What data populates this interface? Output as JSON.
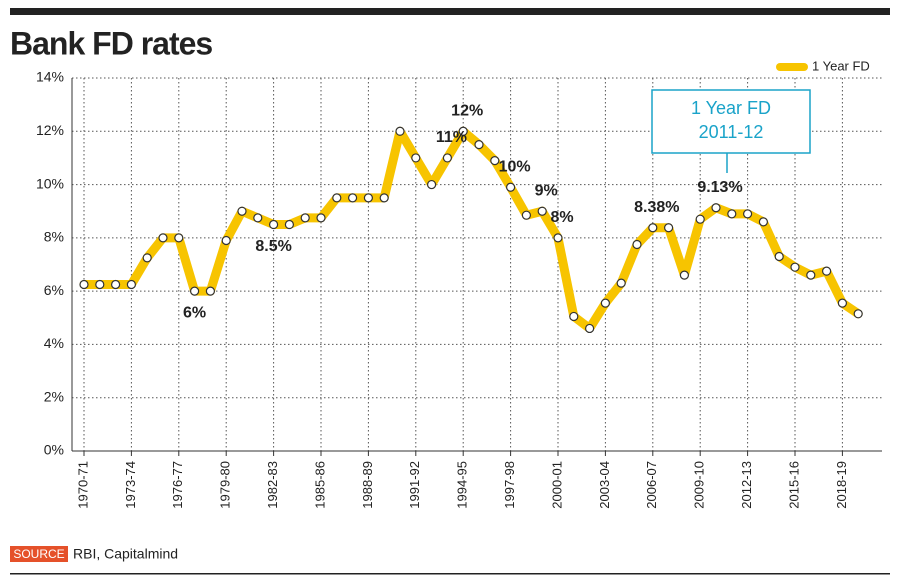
{
  "chart_data": {
    "type": "line",
    "title": "Bank FD rates",
    "categories": [
      "1970-71",
      null,
      null,
      "1973-74",
      null,
      null,
      "1976-77",
      null,
      null,
      "1979-80",
      null,
      null,
      "1982-83",
      null,
      null,
      "1985-86",
      null,
      null,
      "1988-89",
      null,
      null,
      "1991-92",
      null,
      null,
      "1994-95",
      null,
      null,
      "1997-98",
      null,
      null,
      "2000-01",
      null,
      null,
      "2003-04",
      null,
      null,
      "2006-07",
      null,
      null,
      "2009-10",
      null,
      null,
      "2012-13",
      null,
      null,
      "2015-16",
      null,
      null,
      "2018-19",
      null
    ],
    "series": [
      {
        "name": "1 Year FD",
        "color": "#f7c400",
        "values": [
          6.25,
          6.25,
          6.25,
          6.25,
          7.25,
          8,
          8,
          6,
          6,
          7.9,
          9,
          8.75,
          8.5,
          8.5,
          8.75,
          8.75,
          9.5,
          9.5,
          9.5,
          9.5,
          12,
          11,
          10,
          11,
          12,
          11.5,
          10.9,
          9.9,
          8.85,
          9,
          8,
          5.05,
          4.6,
          5.55,
          6.3,
          7.75,
          8.38,
          8.38,
          6.6,
          8.7,
          9.13,
          8.9,
          8.9,
          8.6,
          7.3,
          6.9,
          6.6,
          6.75,
          5.55,
          5.15
        ],
        "value_labels": [
          null,
          null,
          null,
          null,
          null,
          null,
          null,
          "6%",
          null,
          null,
          null,
          null,
          "8.5%",
          null,
          null,
          null,
          null,
          null,
          null,
          null,
          null,
          null,
          null,
          "11%",
          "12%",
          null,
          null,
          "10%",
          null,
          "9%",
          "8%",
          null,
          null,
          null,
          null,
          null,
          "8.38%",
          null,
          null,
          null,
          "9.13%",
          null,
          null,
          null,
          null,
          null,
          null,
          null,
          null,
          null
        ]
      }
    ],
    "ylim": [
      0,
      14
    ],
    "yticks": [
      {
        "value": 0,
        "label": "0%"
      },
      {
        "value": 2,
        "label": "2%"
      },
      {
        "value": 4,
        "label": "4%"
      },
      {
        "value": 6,
        "label": "6%"
      },
      {
        "value": 8,
        "label": "8%"
      },
      {
        "value": 10,
        "label": "10%"
      },
      {
        "value": 12,
        "label": "12%"
      },
      {
        "value": 14,
        "label": "14%"
      }
    ],
    "grid": true,
    "legend": "top-right",
    "annotation": {
      "lines": [
        "1 Year FD",
        "2011-12"
      ]
    },
    "source": {
      "tag": "SOURCE",
      "text": "RBI, Capitalmind"
    }
  }
}
